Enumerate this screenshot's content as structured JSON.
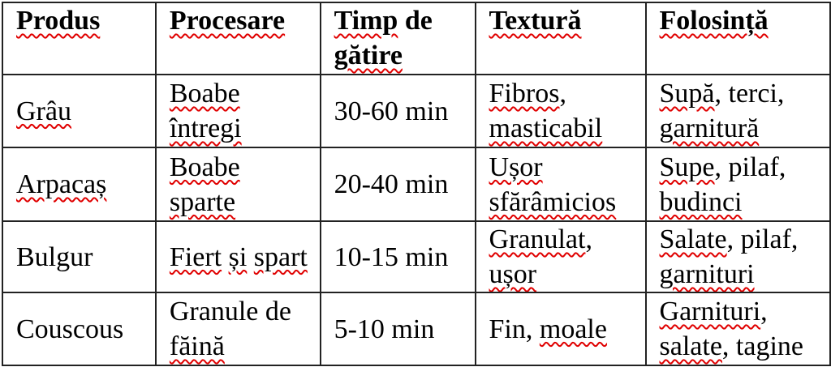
{
  "table": {
    "headers": [
      "Produs",
      "Procesare",
      "Timp de gătire",
      "Textură",
      "Folosință"
    ],
    "rows": [
      [
        "Grâu",
        "Boabe întregi",
        "30-60 min",
        "Fibros, masticabil",
        "Supă, terci, garnitură"
      ],
      [
        "Arpacaș",
        "Boabe sparte",
        "20-40 min",
        "Ușor sfărâmicios",
        "Supe, pilaf, budinci"
      ],
      [
        "Bulgur",
        "Fiert și spart",
        "10-15 min",
        "Granulat, ușor",
        "Salate, pilaf, garnituri"
      ],
      [
        "Couscous",
        "Granule de făină",
        "5-10 min",
        "Fin, moale",
        "Garnituri, salate, tagine"
      ]
    ]
  },
  "spellcheck_flagged_words": [
    "Produs",
    "Procesare",
    "Timp",
    "gătire",
    "Textură",
    "Folosință",
    "Grâu",
    "Boabe",
    "întregi",
    "Fibros",
    "masticabil",
    "Supă",
    "garnitură",
    "Arpacaș",
    "sparte",
    "Ușor",
    "sfărâmicios",
    "Supe",
    "budinci",
    "Fiert",
    "și",
    "spart",
    "Granulat",
    "ușor",
    "Salate",
    "garnituri",
    "făină",
    "moale",
    "Garnituri",
    "salate"
  ],
  "colors": {
    "spellcheck_underline": "#e00000",
    "border": "#222222"
  }
}
